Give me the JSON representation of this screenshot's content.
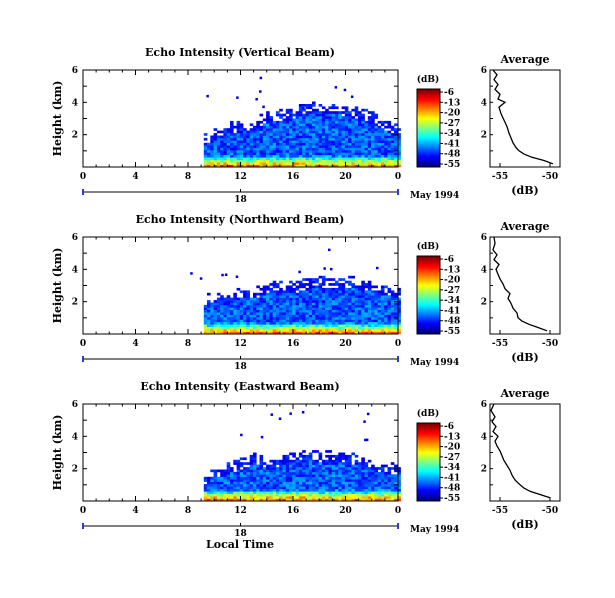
{
  "figure": {
    "xlabel": "Local Time",
    "date_label": "May 1994",
    "day_label": "18",
    "colorbar_unit": "(dB)",
    "average_title": "Average",
    "average_xlabel": "(dB)"
  },
  "chart_data": [
    {
      "type": "heatmap",
      "title": "Echo Intensity (Vertical Beam)",
      "ylabel": "Height (km)",
      "xlabel": "Local Time",
      "x_ticks": [
        "0",
        "4",
        "8",
        "12",
        "16",
        "20",
        "0"
      ],
      "y_ticks": [
        "2",
        "4",
        "6"
      ],
      "xlim": [
        0,
        24
      ],
      "ylim": [
        0,
        6
      ],
      "colorbar": {
        "unit": "(dB)",
        "ticks": [
          "-6",
          "-13",
          "-20",
          "-27",
          "-34",
          "-41",
          "-48",
          "-55"
        ]
      },
      "echo_start_hour": 9.2,
      "echo_top_km": [
        [
          9.2,
          1.7
        ],
        [
          10,
          2.0
        ],
        [
          11,
          2.4
        ],
        [
          12,
          2.5
        ],
        [
          13,
          2.7
        ],
        [
          14,
          3.1
        ],
        [
          15,
          3.2
        ],
        [
          16,
          3.3
        ],
        [
          17,
          3.7
        ],
        [
          18,
          3.5
        ],
        [
          19,
          3.7
        ],
        [
          20,
          3.4
        ],
        [
          21,
          3.3
        ],
        [
          22,
          3.0
        ],
        [
          23,
          2.5
        ],
        [
          24,
          2.3
        ]
      ],
      "average_profile": {
        "title": "Average",
        "xlabel": "(dB)",
        "x_ticks": [
          "-55",
          "-50"
        ],
        "y_ticks": [
          "2",
          "4",
          "6"
        ],
        "xlim": [
          -56,
          -49
        ],
        "height_km": [
          0.2,
          0.4,
          0.6,
          0.8,
          1.0,
          1.2,
          1.5,
          1.8,
          2.1,
          2.5,
          2.9,
          3.3,
          3.7,
          4.0,
          4.2,
          4.5,
          4.8,
          5.1,
          5.4,
          5.7,
          6.0
        ],
        "db": [
          -49.7,
          -50.6,
          -51.8,
          -52.6,
          -53.1,
          -53.4,
          -53.7,
          -53.9,
          -54.1,
          -54.3,
          -54.6,
          -54.9,
          -55.1,
          -54.5,
          -55.2,
          -55.0,
          -55.5,
          -55.2,
          -55.6,
          -55.3,
          -55.7
        ]
      }
    },
    {
      "type": "heatmap",
      "title": "Echo Intensity (Northward Beam)",
      "ylabel": "Height (km)",
      "xlabel": "Local Time",
      "x_ticks": [
        "0",
        "4",
        "8",
        "12",
        "16",
        "20",
        "0"
      ],
      "y_ticks": [
        "2",
        "4",
        "6"
      ],
      "xlim": [
        0,
        24
      ],
      "ylim": [
        0,
        6
      ],
      "colorbar": {
        "unit": "(dB)",
        "ticks": [
          "-6",
          "-13",
          "-20",
          "-27",
          "-34",
          "-41",
          "-48",
          "-55"
        ]
      },
      "echo_start_hour": 9.2,
      "echo_top_km": [
        [
          9.2,
          2.1
        ],
        [
          10,
          2.3
        ],
        [
          11,
          2.4
        ],
        [
          12,
          2.6
        ],
        [
          13,
          2.5
        ],
        [
          14,
          2.9
        ],
        [
          15,
          3.0
        ],
        [
          16,
          2.8
        ],
        [
          17,
          3.1
        ],
        [
          18,
          3.2
        ],
        [
          19,
          3.0
        ],
        [
          20,
          3.2
        ],
        [
          21,
          3.1
        ],
        [
          22,
          2.9
        ],
        [
          23,
          2.7
        ],
        [
          24,
          2.5
        ]
      ],
      "average_profile": {
        "title": "Average",
        "xlabel": "(dB)",
        "x_ticks": [
          "-55",
          "-50"
        ],
        "y_ticks": [
          "2",
          "4",
          "6"
        ],
        "xlim": [
          -56,
          -49
        ],
        "height_km": [
          0.2,
          0.4,
          0.6,
          0.8,
          1.0,
          1.3,
          1.6,
          1.9,
          2.2,
          2.5,
          2.8,
          3.1,
          3.4,
          3.7,
          4.0,
          4.3,
          4.6,
          4.9,
          5.2,
          5.6,
          6.0
        ],
        "db": [
          -50.3,
          -51.2,
          -52.1,
          -52.8,
          -53.2,
          -53.3,
          -53.7,
          -53.9,
          -54.2,
          -54.0,
          -54.5,
          -54.7,
          -55.0,
          -55.2,
          -55.4,
          -55.1,
          -55.6,
          -55.3,
          -55.7,
          -55.5,
          -55.6
        ]
      }
    },
    {
      "type": "heatmap",
      "title": "Echo Intensity (Eastward Beam)",
      "ylabel": "Height (km)",
      "xlabel": "Local Time",
      "x_ticks": [
        "0",
        "4",
        "8",
        "12",
        "16",
        "20",
        "0"
      ],
      "y_ticks": [
        "2",
        "4",
        "6"
      ],
      "xlim": [
        0,
        24
      ],
      "ylim": [
        0,
        6
      ],
      "colorbar": {
        "unit": "(dB)",
        "ticks": [
          "-6",
          "-13",
          "-20",
          "-27",
          "-34",
          "-41",
          "-48",
          "-55"
        ]
      },
      "echo_start_hour": 9.2,
      "echo_top_km": [
        [
          9.2,
          1.3
        ],
        [
          10,
          1.8
        ],
        [
          11,
          2.0
        ],
        [
          12,
          2.3
        ],
        [
          13,
          2.6
        ],
        [
          14,
          2.3
        ],
        [
          15,
          2.5
        ],
        [
          16,
          2.8
        ],
        [
          17,
          2.9
        ],
        [
          18,
          2.7
        ],
        [
          19,
          2.9
        ],
        [
          20,
          2.6
        ],
        [
          21,
          2.5
        ],
        [
          22,
          2.2
        ],
        [
          23,
          2.0
        ],
        [
          24,
          1.9
        ]
      ],
      "average_profile": {
        "title": "Average",
        "xlabel": "(dB)",
        "x_ticks": [
          "-55",
          "-50"
        ],
        "y_ticks": [
          "2",
          "4",
          "6"
        ],
        "xlim": [
          -56,
          -49
        ],
        "height_km": [
          0.2,
          0.4,
          0.6,
          0.8,
          1.0,
          1.3,
          1.6,
          1.9,
          2.2,
          2.5,
          2.8,
          3.1,
          3.4,
          3.7,
          4.0,
          4.3,
          4.6,
          4.9,
          5.2,
          5.6,
          6.0
        ],
        "db": [
          -50.0,
          -51.0,
          -52.0,
          -52.6,
          -53.0,
          -53.5,
          -53.8,
          -54.0,
          -54.3,
          -54.6,
          -54.8,
          -55.0,
          -55.3,
          -55.5,
          -55.2,
          -55.7,
          -55.4,
          -55.8,
          -55.5,
          -55.9,
          -55.6
        ]
      }
    }
  ]
}
